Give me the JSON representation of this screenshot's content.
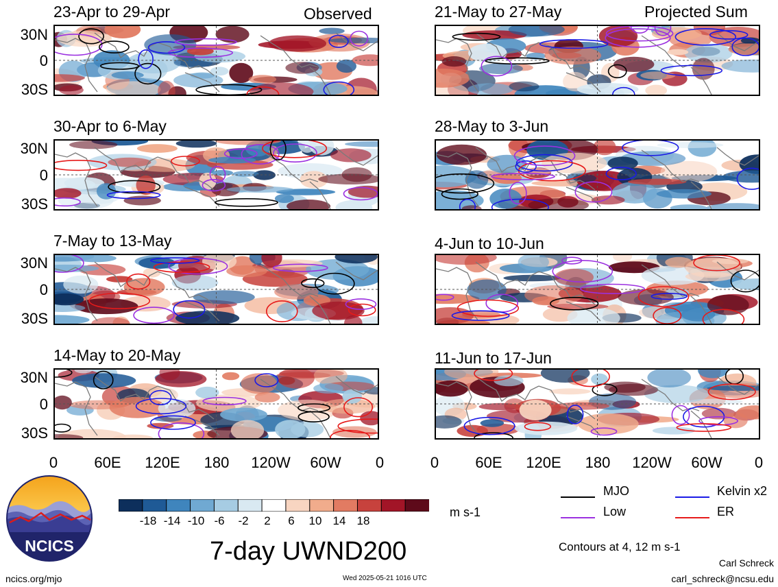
{
  "column_headers": {
    "left": "Observed",
    "right": "Projected Sum"
  },
  "panels": [
    {
      "title": "23-Apr to 29-Apr",
      "column": 0,
      "row": 0
    },
    {
      "title": "30-Apr to 6-May",
      "column": 0,
      "row": 1
    },
    {
      "title": "7-May to 13-May",
      "column": 0,
      "row": 2
    },
    {
      "title": "14-May to 20-May",
      "column": 0,
      "row": 3
    },
    {
      "title": "21-May to 27-May",
      "column": 1,
      "row": 0
    },
    {
      "title": "28-May to 3-Jun",
      "column": 1,
      "row": 1
    },
    {
      "title": "4-Jun to 10-Jun",
      "column": 1,
      "row": 2
    },
    {
      "title": "11-Jun to 17-Jun",
      "column": 1,
      "row": 3
    }
  ],
  "lat_labels": [
    "30N",
    "0",
    "30S"
  ],
  "lon_labels": [
    "0",
    "60E",
    "120E",
    "180",
    "120W",
    "60W",
    "0"
  ],
  "colorbar": {
    "unit": "m s-1",
    "tick_labels": [
      "-18",
      "-14",
      "-10",
      "-6",
      "-2",
      "2",
      "6",
      "10",
      "14",
      "18"
    ],
    "colors": [
      "#0d2f5c",
      "#1f5a96",
      "#3f85bd",
      "#70a9d2",
      "#a6cce3",
      "#d9e9f2",
      "#ffffff",
      "#f8d5c1",
      "#f1ac8c",
      "#e27b62",
      "#c7423d",
      "#a21527",
      "#5e0a1a"
    ]
  },
  "legend": {
    "items": [
      {
        "label": "MJO",
        "color": "#000000"
      },
      {
        "label": "Kelvin x2",
        "color": "#1a1ae6"
      },
      {
        "label": "Low",
        "color": "#9b30e0"
      },
      {
        "label": "ER",
        "color": "#e61a1a"
      }
    ],
    "contour_note": "Contours at 4, 12 m s-1"
  },
  "main_title": "7-day UWND200",
  "logo_text": "NCICS",
  "footer": {
    "url": "ncics.org/mjo",
    "timestamp": "Wed 2025-05-21 1016 UTC",
    "author": "Carl Schreck",
    "email": "carl_schreck@ncsu.edu"
  }
}
